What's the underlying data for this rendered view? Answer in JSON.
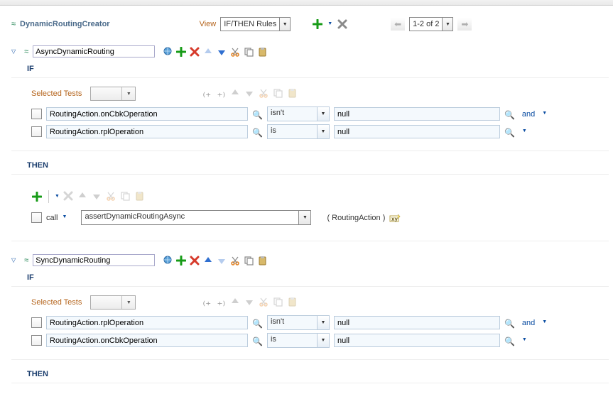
{
  "header": {
    "title": "DynamicRoutingCreator",
    "view_label": "View",
    "view_value": "IF/THEN Rules",
    "pager_text": "1-2 of 2"
  },
  "colors": {
    "accent": "#0b4da2",
    "brown": "#b5651d",
    "green": "#179b17",
    "red": "#d63a2b",
    "blue_arrow": "#2f6fd0",
    "orange": "#e38120"
  },
  "rules": [
    {
      "name": "AsyncDynamicRouting",
      "if": {
        "selected_label": "Selected Tests",
        "tests": [
          {
            "field": "RoutingAction.onCbkOperation",
            "op": "isn't",
            "value": "null",
            "conj": "and"
          },
          {
            "field": "RoutingAction.rplOperation",
            "op": "is",
            "value": "null",
            "conj": ""
          }
        ]
      },
      "then": {
        "call_label": "call",
        "target": "assertDynamicRoutingAsync",
        "args": "RoutingAction"
      },
      "arrows": {
        "up_enabled": false,
        "down_enabled": true
      }
    },
    {
      "name": "SyncDynamicRouting",
      "if": {
        "selected_label": "Selected Tests",
        "tests": [
          {
            "field": "RoutingAction.rplOperation",
            "op": "isn't",
            "value": "null",
            "conj": "and"
          },
          {
            "field": "RoutingAction.onCbkOperation",
            "op": "is",
            "value": "null",
            "conj": ""
          }
        ]
      },
      "then": null,
      "arrows": {
        "up_enabled": true,
        "down_enabled": false
      }
    }
  ],
  "labels": {
    "if": "IF",
    "then": "THEN"
  }
}
